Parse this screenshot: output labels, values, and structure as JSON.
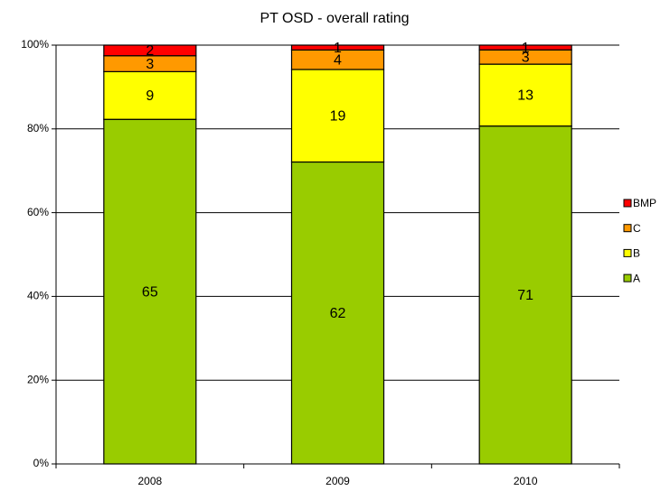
{
  "chart_data": {
    "type": "bar",
    "stacking": "percent",
    "title": "PT OSD - overall rating",
    "categories": [
      "2008",
      "2009",
      "2010"
    ],
    "series": [
      {
        "name": "A",
        "color": "#99cc00",
        "values": [
          65,
          62,
          71
        ]
      },
      {
        "name": "B",
        "color": "#ffff00",
        "values": [
          9,
          19,
          13
        ]
      },
      {
        "name": "C",
        "color": "#ff9900",
        "values": [
          3,
          4,
          3
        ]
      },
      {
        "name": "BMP",
        "color": "#ff0000",
        "values": [
          2,
          1,
          1
        ]
      }
    ],
    "ylim": [
      0,
      100
    ],
    "yticks": [
      {
        "value": 0,
        "label": "0%"
      },
      {
        "value": 20,
        "label": "20%"
      },
      {
        "value": 40,
        "label": "40%"
      },
      {
        "value": 60,
        "label": "60%"
      },
      {
        "value": 80,
        "label": "80%"
      },
      {
        "value": 100,
        "label": "100%"
      }
    ],
    "grid": true,
    "legend": "right"
  }
}
